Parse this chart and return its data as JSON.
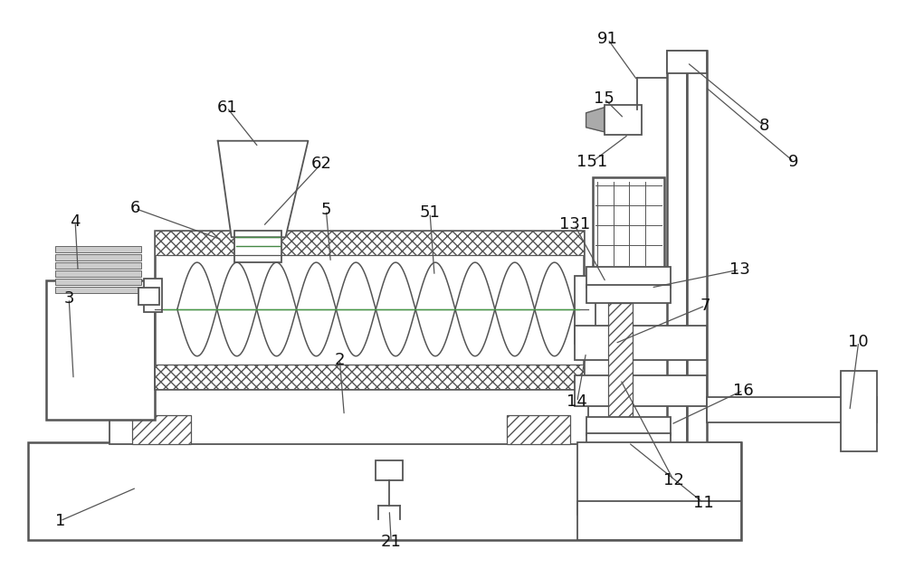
{
  "bg_color": "#ffffff",
  "line_color": "#555555",
  "label_color": "#111111",
  "label_fontsize": 13,
  "figsize": [
    10.0,
    6.39
  ],
  "dpi": 100
}
